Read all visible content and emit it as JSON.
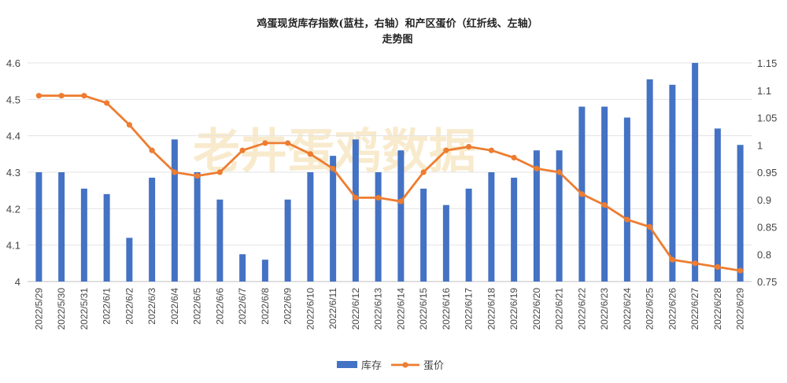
{
  "chart_data": {
    "type": "bar+line",
    "title_line1": "鸡蛋现货库存指数(蓝柱，右轴）和产区蛋价（红折线、左轴）",
    "title_line2": "走势图",
    "watermark": "老井蛋鸡数据",
    "categories": [
      "2022/5/29",
      "2022/5/30",
      "2022/5/31",
      "2022/6/1",
      "2022/6/2",
      "2022/6/3",
      "2022/6/4",
      "2022/6/5",
      "2022/6/6",
      "2022/6/7",
      "2022/6/8",
      "2022/6/9",
      "2022/6/10",
      "2022/6/11",
      "2022/6/12",
      "2022/6/13",
      "2022/6/14",
      "2022/6/15",
      "2022/6/16",
      "2022/6/17",
      "2022/6/18",
      "2022/6/19",
      "2022/6/20",
      "2022/6/21",
      "2022/6/22",
      "2022/6/23",
      "2022/6/24",
      "2022/6/25",
      "2022/6/26",
      "2022/6/27",
      "2022/6/28",
      "2022/6/29"
    ],
    "series": [
      {
        "name": "库存",
        "type": "bar",
        "axis": "right",
        "color": "#4472c4",
        "values": [
          0.95,
          0.95,
          0.92,
          0.91,
          0.83,
          0.94,
          1.01,
          0.95,
          0.9,
          0.8,
          0.79,
          0.9,
          0.95,
          0.98,
          1.01,
          0.95,
          0.99,
          0.92,
          0.89,
          0.92,
          0.95,
          0.94,
          0.99,
          0.99,
          1.07,
          1.07,
          1.05,
          1.12,
          1.11,
          1.15,
          1.03,
          1.0
        ]
      },
      {
        "name": "蛋价",
        "type": "line",
        "axis": "left",
        "color": "#ed7d31",
        "values": [
          4.51,
          4.51,
          4.51,
          4.49,
          4.43,
          4.36,
          4.3,
          4.29,
          4.3,
          4.36,
          4.38,
          4.38,
          4.35,
          4.31,
          4.23,
          4.23,
          4.22,
          4.3,
          4.36,
          4.37,
          4.36,
          4.34,
          4.31,
          4.3,
          4.24,
          4.21,
          4.17,
          4.15,
          4.06,
          4.05,
          4.04,
          4.03
        ]
      }
    ],
    "y_left": {
      "ticks": [
        "4",
        "4.1",
        "4.2",
        "4.3",
        "4.4",
        "4.5",
        "4.6"
      ],
      "min": 4.0,
      "max": 4.6
    },
    "y_right": {
      "ticks": [
        "0.75",
        "0.8",
        "0.85",
        "0.9",
        "0.95",
        "1",
        "1.05",
        "1.1",
        "1.15"
      ],
      "min": 0.75,
      "max": 1.15
    },
    "grid": true,
    "legend_position": "bottom"
  }
}
